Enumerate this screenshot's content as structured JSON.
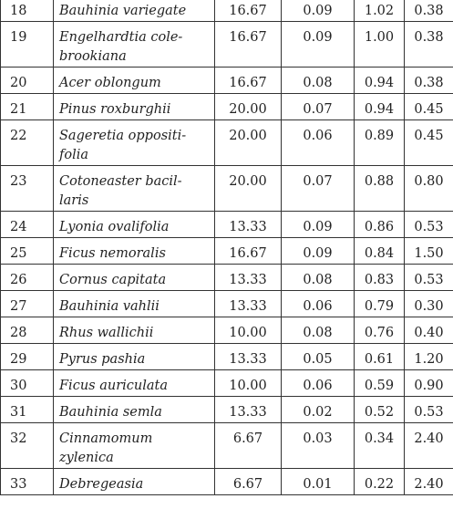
{
  "table": {
    "rows": [
      [
        "18",
        [
          "Bauhinia variegate"
        ],
        "16.67",
        "0.09",
        "1.02",
        "0.38"
      ],
      [
        "19",
        [
          "Engelhardtia cole-",
          "brookiana"
        ],
        "16.67",
        "0.09",
        "1.00",
        "0.38"
      ],
      [
        "20",
        [
          "Acer oblongum"
        ],
        "16.67",
        "0.08",
        "0.94",
        "0.38"
      ],
      [
        "21",
        [
          "Pinus roxburghii"
        ],
        "20.00",
        "0.07",
        "0.94",
        "0.45"
      ],
      [
        "22",
        [
          "Sageretia oppositi-",
          "folia"
        ],
        "20.00",
        "0.06",
        "0.89",
        "0.45"
      ],
      [
        "23",
        [
          "Cotoneaster bacil-",
          "laris"
        ],
        "20.00",
        "0.07",
        "0.88",
        "0.80"
      ],
      [
        "24",
        [
          "Lyonia ovalifolia"
        ],
        "13.33",
        "0.09",
        "0.86",
        "0.53"
      ],
      [
        "25",
        [
          "Ficus nemoralis"
        ],
        "16.67",
        "0.09",
        "0.84",
        "1.50"
      ],
      [
        "26",
        [
          "Cornus capitata"
        ],
        "13.33",
        "0.08",
        "0.83",
        "0.53"
      ],
      [
        "27",
        [
          "Bauhinia vahlii"
        ],
        "13.33",
        "0.06",
        "0.79",
        "0.30"
      ],
      [
        "28",
        [
          "Rhus wallichii"
        ],
        "10.00",
        "0.08",
        "0.76",
        "0.40"
      ],
      [
        "29",
        [
          "Pyrus pashia"
        ],
        "13.33",
        "0.05",
        "0.61",
        "1.20"
      ],
      [
        "30",
        [
          "Ficus auriculata"
        ],
        "10.00",
        "0.06",
        "0.59",
        "0.90"
      ],
      [
        "31",
        [
          "Bauhinia semla"
        ],
        "13.33",
        "0.02",
        "0.52",
        "0.53"
      ],
      [
        "32",
        [
          "Cinnamomum",
          "zylenica"
        ],
        "6.67",
        "0.03",
        "0.34",
        "2.40"
      ],
      [
        "33",
        [
          "Debregeasia"
        ],
        "6.67",
        "0.01",
        "0.22",
        "2.40"
      ]
    ]
  }
}
